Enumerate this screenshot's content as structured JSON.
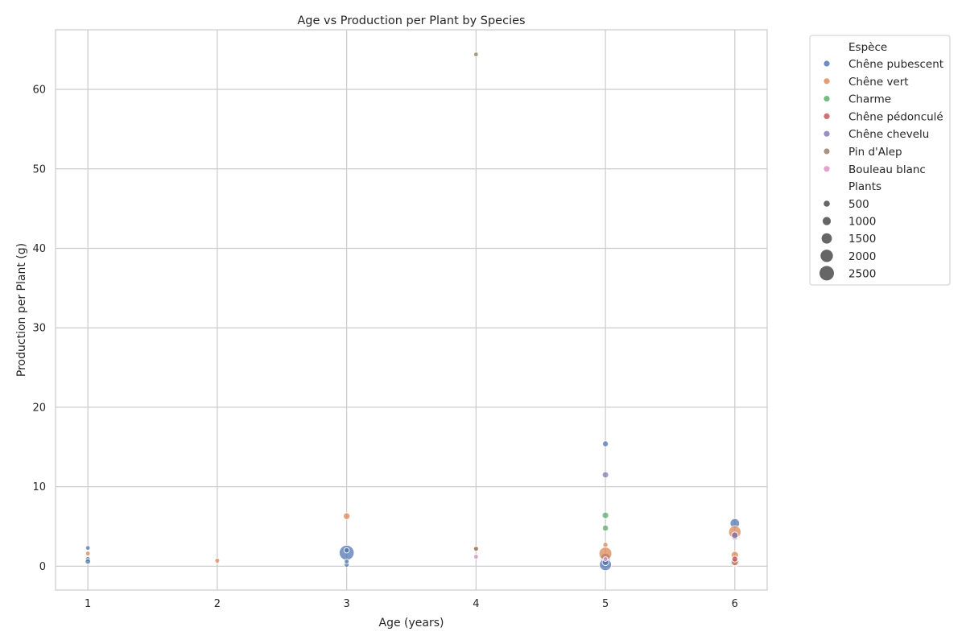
{
  "chart_data": {
    "type": "scatter",
    "title": "Age vs Production per Plant by Species",
    "xlabel": "Age (years)",
    "ylabel": "Production per Plant (g)",
    "xlim": [
      0.75,
      6.25
    ],
    "ylim": [
      -3,
      67.5
    ],
    "xticks": [
      1,
      2,
      3,
      4,
      5,
      6
    ],
    "yticks": [
      0,
      10,
      20,
      30,
      40,
      50,
      60
    ],
    "grid": true,
    "legend_position": "outside-top-right",
    "hue_title": "Espèce",
    "size_title": "Plants",
    "size_legend_values": [
      500,
      1000,
      1500,
      2000,
      2500
    ],
    "series": [
      {
        "name": "Chêne pubescent",
        "color": "#4c72b0",
        "points": [
          {
            "x": 1,
            "y": 2.3,
            "plants": 150
          },
          {
            "x": 1,
            "y": 0.9,
            "plants": 200
          },
          {
            "x": 1,
            "y": 0.6,
            "plants": 350
          },
          {
            "x": 3,
            "y": 1.7,
            "plants": 2600
          },
          {
            "x": 3,
            "y": 2.0,
            "plants": 300
          },
          {
            "x": 3,
            "y": 0.2,
            "plants": 250
          },
          {
            "x": 3,
            "y": 0.6,
            "plants": 200
          },
          {
            "x": 5,
            "y": 15.4,
            "plants": 450
          },
          {
            "x": 5,
            "y": 1.0,
            "plants": 1400
          },
          {
            "x": 5,
            "y": 0.2,
            "plants": 1900
          },
          {
            "x": 5,
            "y": 0.5,
            "plants": 600
          },
          {
            "x": 6,
            "y": 5.4,
            "plants": 1300
          },
          {
            "x": 6,
            "y": 0.5,
            "plants": 1100
          },
          {
            "x": 6,
            "y": 3.8,
            "plants": 900
          }
        ]
      },
      {
        "name": "Chêne vert",
        "color": "#dd8452",
        "points": [
          {
            "x": 1,
            "y": 1.6,
            "plants": 150
          },
          {
            "x": 2,
            "y": 0.7,
            "plants": 200
          },
          {
            "x": 3,
            "y": 6.3,
            "plants": 650
          },
          {
            "x": 4,
            "y": 2.2,
            "plants": 250
          },
          {
            "x": 5,
            "y": 2.7,
            "plants": 250
          },
          {
            "x": 5,
            "y": 1.6,
            "plants": 2100
          },
          {
            "x": 6,
            "y": 4.3,
            "plants": 2000
          },
          {
            "x": 6,
            "y": 1.4,
            "plants": 800
          },
          {
            "x": 6,
            "y": 0.5,
            "plants": 700
          }
        ]
      },
      {
        "name": "Charme",
        "color": "#55a868",
        "points": [
          {
            "x": 5,
            "y": 6.4,
            "plants": 600
          },
          {
            "x": 5,
            "y": 4.8,
            "plants": 500
          }
        ]
      },
      {
        "name": "Chêne pédonculé",
        "color": "#c44e52",
        "points": [
          {
            "x": 6,
            "y": 0.9,
            "plants": 450
          }
        ]
      },
      {
        "name": "Chêne chevelu",
        "color": "#8172b3",
        "points": [
          {
            "x": 5,
            "y": 11.5,
            "plants": 550
          },
          {
            "x": 6,
            "y": 3.9,
            "plants": 600
          }
        ]
      },
      {
        "name": "Pin d'Alep",
        "color": "#937860",
        "points": [
          {
            "x": 4,
            "y": 64.4,
            "plants": 150
          },
          {
            "x": 4,
            "y": 2.2,
            "plants": 200
          }
        ]
      },
      {
        "name": "Bouleau blanc",
        "color": "#da8bc3",
        "points": [
          {
            "x": 4,
            "y": 1.2,
            "plants": 200
          },
          {
            "x": 5,
            "y": 0.9,
            "plants": 150
          }
        ]
      }
    ]
  }
}
